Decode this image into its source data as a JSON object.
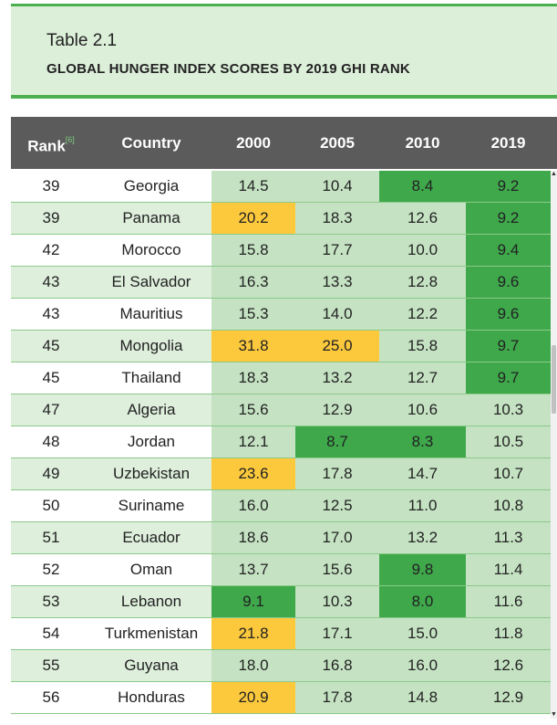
{
  "title": {
    "label": "Table 2.1",
    "subtitle": "GLOBAL HUNGER INDEX SCORES BY 2019 GHI RANK"
  },
  "columns": {
    "rank": "Rank",
    "rank_note": "[6]",
    "country": "Country",
    "y2000": "2000",
    "y2005": "2005",
    "y2010": "2010",
    "y2019": "2019"
  },
  "colors": {
    "light": "#c5e3c3",
    "pale": "#deefdc",
    "white": "#ffffff",
    "strong": "#3ea84b",
    "yellow": "#fcc93d"
  },
  "rows": [
    {
      "rank": "39",
      "country": "Georgia",
      "v": [
        "14.5",
        "10.4",
        "8.4",
        "9.2"
      ],
      "c": [
        "light",
        "light",
        "strong",
        "strong"
      ]
    },
    {
      "rank": "39",
      "country": "Panama",
      "v": [
        "20.2",
        "18.3",
        "12.6",
        "9.2"
      ],
      "c": [
        "yellow",
        "light",
        "light",
        "strong"
      ]
    },
    {
      "rank": "42",
      "country": "Morocco",
      "v": [
        "15.8",
        "17.7",
        "10.0",
        "9.4"
      ],
      "c": [
        "light",
        "light",
        "light",
        "strong"
      ]
    },
    {
      "rank": "43",
      "country": "El Salvador",
      "v": [
        "16.3",
        "13.3",
        "12.8",
        "9.6"
      ],
      "c": [
        "light",
        "light",
        "light",
        "strong"
      ]
    },
    {
      "rank": "43",
      "country": "Mauritius",
      "v": [
        "15.3",
        "14.0",
        "12.2",
        "9.6"
      ],
      "c": [
        "light",
        "light",
        "light",
        "strong"
      ]
    },
    {
      "rank": "45",
      "country": "Mongolia",
      "v": [
        "31.8",
        "25.0",
        "15.8",
        "9.7"
      ],
      "c": [
        "yellow",
        "yellow",
        "light",
        "strong"
      ]
    },
    {
      "rank": "45",
      "country": "Thailand",
      "v": [
        "18.3",
        "13.2",
        "12.7",
        "9.7"
      ],
      "c": [
        "light",
        "light",
        "light",
        "strong"
      ]
    },
    {
      "rank": "47",
      "country": "Algeria",
      "v": [
        "15.6",
        "12.9",
        "10.6",
        "10.3"
      ],
      "c": [
        "light",
        "light",
        "light",
        "light"
      ]
    },
    {
      "rank": "48",
      "country": "Jordan",
      "v": [
        "12.1",
        "8.7",
        "8.3",
        "10.5"
      ],
      "c": [
        "light",
        "strong",
        "strong",
        "light"
      ]
    },
    {
      "rank": "49",
      "country": "Uzbekistan",
      "v": [
        "23.6",
        "17.8",
        "14.7",
        "10.7"
      ],
      "c": [
        "yellow",
        "light",
        "light",
        "light"
      ]
    },
    {
      "rank": "50",
      "country": "Suriname",
      "v": [
        "16.0",
        "12.5",
        "11.0",
        "10.8"
      ],
      "c": [
        "light",
        "light",
        "light",
        "light"
      ]
    },
    {
      "rank": "51",
      "country": "Ecuador",
      "v": [
        "18.6",
        "17.0",
        "13.2",
        "11.3"
      ],
      "c": [
        "light",
        "light",
        "light",
        "light"
      ]
    },
    {
      "rank": "52",
      "country": "Oman",
      "v": [
        "13.7",
        "15.6",
        "9.8",
        "11.4"
      ],
      "c": [
        "light",
        "light",
        "strong",
        "light"
      ]
    },
    {
      "rank": "53",
      "country": "Lebanon",
      "v": [
        "9.1",
        "10.3",
        "8.0",
        "11.6"
      ],
      "c": [
        "strong",
        "light",
        "strong",
        "light"
      ]
    },
    {
      "rank": "54",
      "country": "Turkmenistan",
      "v": [
        "21.8",
        "17.1",
        "15.0",
        "11.8"
      ],
      "c": [
        "yellow",
        "light",
        "light",
        "light"
      ]
    },
    {
      "rank": "55",
      "country": "Guyana",
      "v": [
        "18.0",
        "16.8",
        "16.0",
        "12.6"
      ],
      "c": [
        "light",
        "light",
        "light",
        "light"
      ]
    },
    {
      "rank": "56",
      "country": "Honduras",
      "v": [
        "20.9",
        "17.8",
        "14.8",
        "12.9"
      ],
      "c": [
        "yellow",
        "light",
        "light",
        "light"
      ]
    }
  ],
  "scrollbar": {
    "position_fraction": 0.36
  }
}
